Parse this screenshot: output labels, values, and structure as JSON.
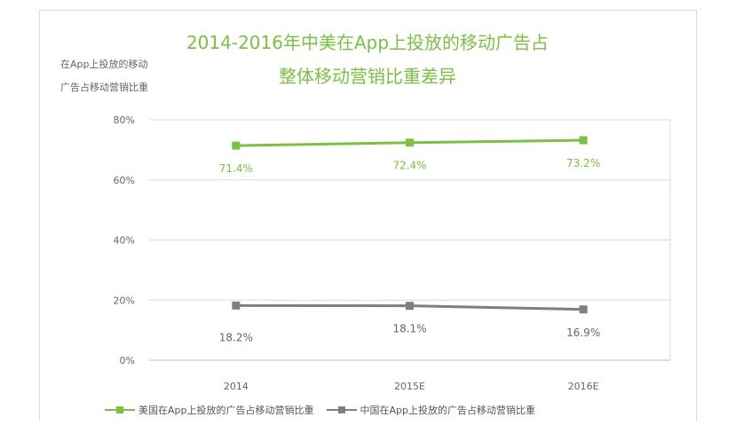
{
  "chart_data": {
    "type": "line",
    "title": [
      "2014-2016年中美在App上投放的移动广告占",
      "整体移动营销比重差异"
    ],
    "ylabel": [
      "在App上投放的移动",
      "广告占移动营销比重"
    ],
    "xlabel": "",
    "categories": [
      "2014",
      "2015E",
      "2016E"
    ],
    "ylim": [
      0,
      80
    ],
    "yticks": [
      0,
      20,
      40,
      60,
      80
    ],
    "ytick_labels": [
      "0%",
      "20%",
      "40%",
      "60%",
      "80%"
    ],
    "grid": true,
    "legend_position": "bottom",
    "series": [
      {
        "name": "美国在App上投放的广告占移动营销比重",
        "values": [
          71.4,
          72.4,
          73.2
        ],
        "labels": [
          "71.4%",
          "72.4%",
          "73.2%"
        ],
        "color": "#7ac143"
      },
      {
        "name": "中国在App上投放的广告占移动营销比重",
        "values": [
          18.2,
          18.1,
          16.9
        ],
        "labels": [
          "18.2%",
          "18.1%",
          "16.9%"
        ],
        "color": "#7f7f7f"
      }
    ]
  }
}
